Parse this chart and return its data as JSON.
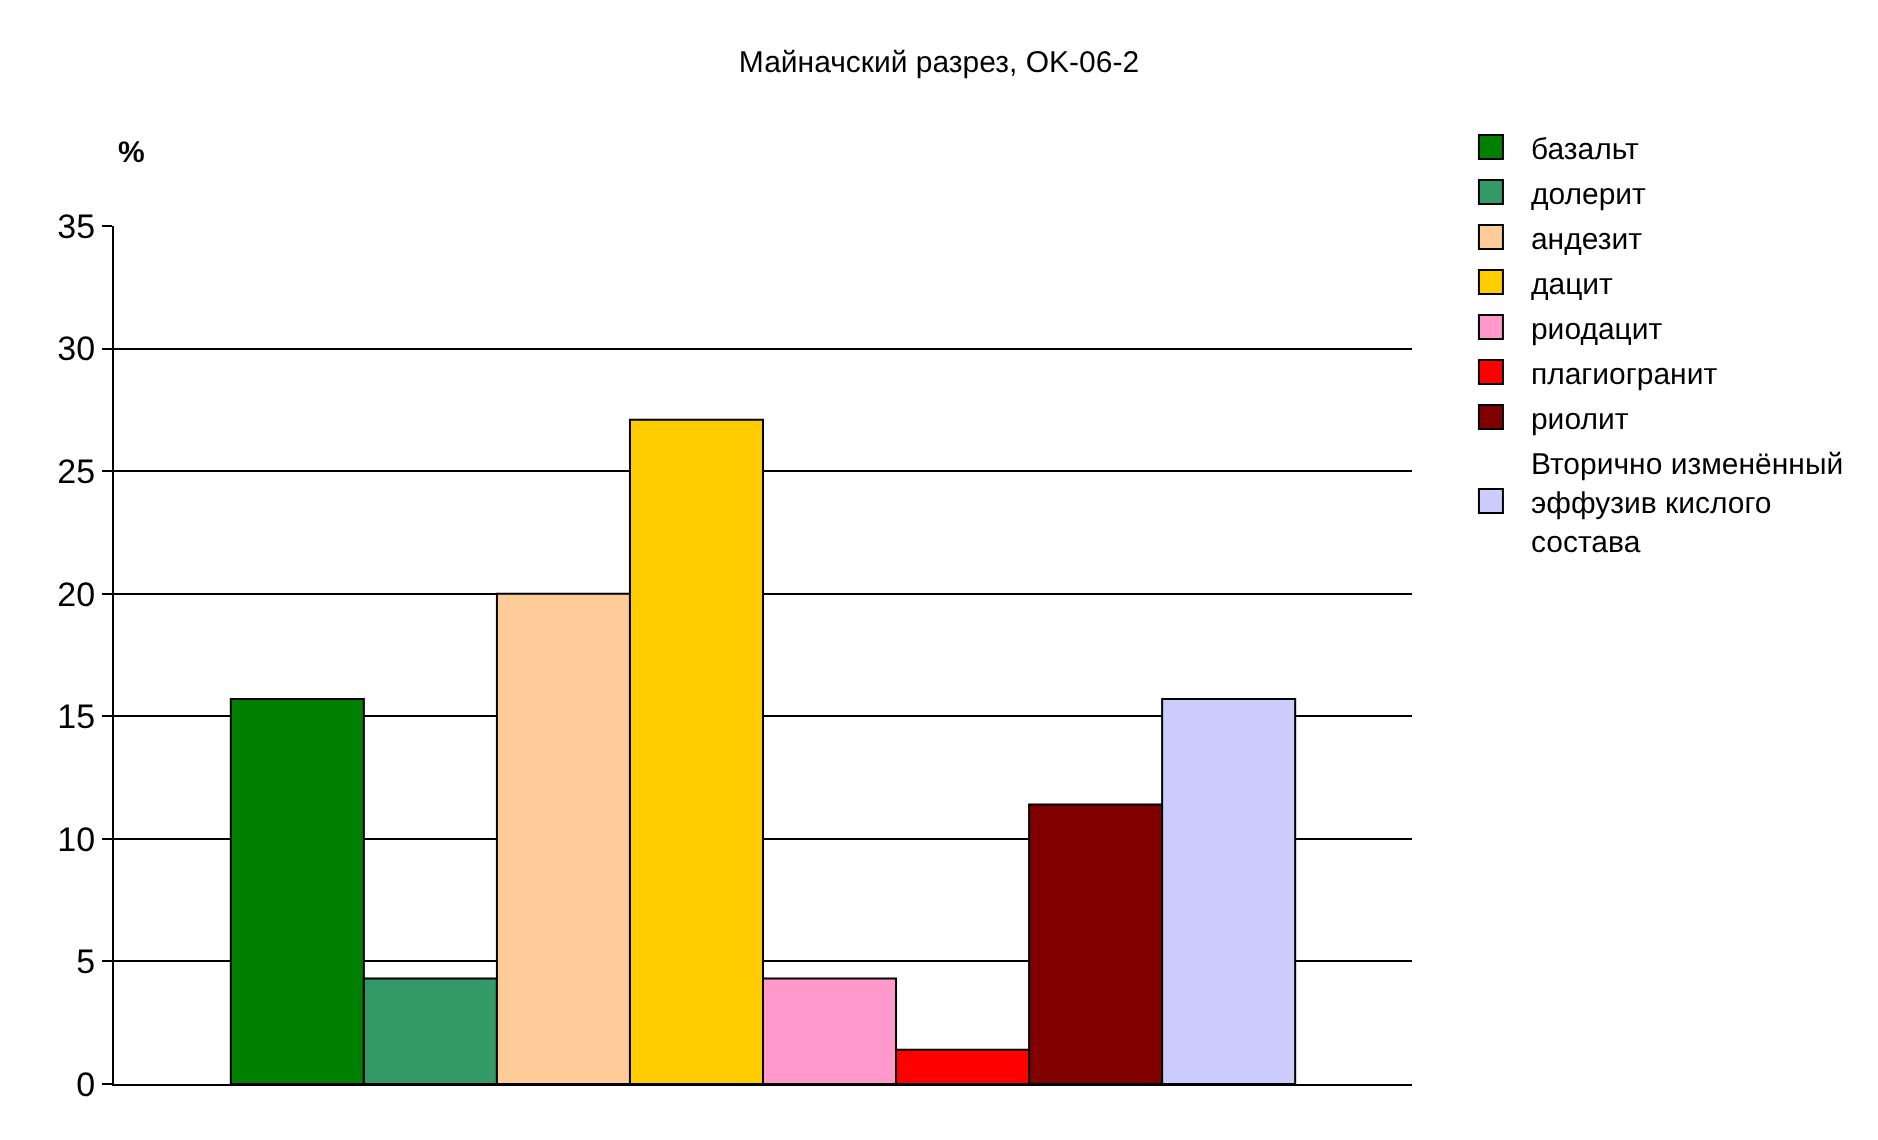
{
  "chart_data": {
    "type": "bar",
    "title": "Майначский разрез, OK-06-2",
    "ylabel": "%",
    "categories": [
      null
    ],
    "series": [
      {
        "name": "базальт",
        "color": "#008000",
        "values": [
          15.7
        ]
      },
      {
        "name": "долерит",
        "color": "#339966",
        "values": [
          4.3
        ]
      },
      {
        "name": "андезит",
        "color": "#ffcc99",
        "values": [
          20.0
        ]
      },
      {
        "name": "дацит",
        "color": "#ffcc00",
        "values": [
          27.1
        ]
      },
      {
        "name": "риодацит",
        "color": "#ff99cc",
        "values": [
          4.3
        ]
      },
      {
        "name": "плагиогранит",
        "color": "#ff0000",
        "values": [
          1.4
        ]
      },
      {
        "name": "риолит",
        "color": "#800000",
        "values": [
          11.4
        ]
      },
      {
        "name": "Вторично изменённый эффузив кислого состава",
        "color": "#ccccff",
        "values": [
          15.7
        ]
      }
    ],
    "ylim": [
      0,
      35
    ],
    "yticks": [
      0,
      5,
      10,
      15,
      20,
      25,
      30,
      35
    ],
    "grid": "y",
    "legend": "right"
  }
}
